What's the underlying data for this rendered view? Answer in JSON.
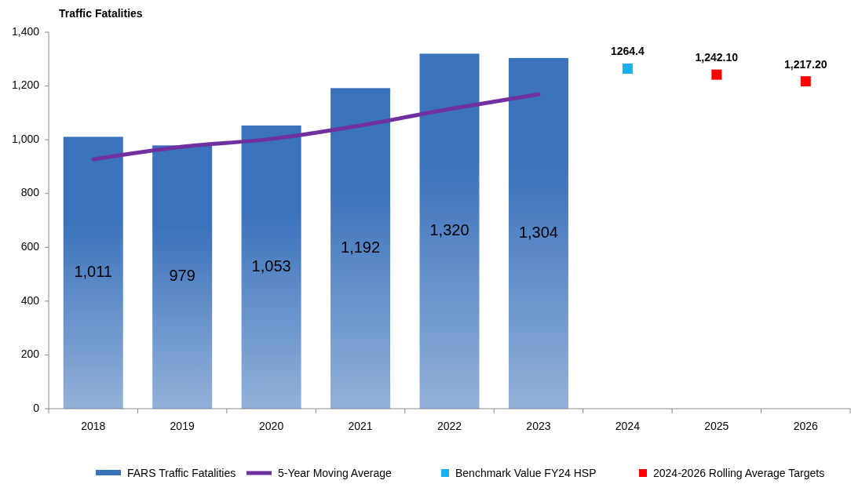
{
  "chart_data": {
    "type": "bar",
    "title": "Traffic Fatalities",
    "categories": [
      "2018",
      "2019",
      "2020",
      "2021",
      "2022",
      "2023",
      "2024",
      "2025",
      "2026"
    ],
    "series": [
      {
        "name": "FARS Traffic Fatalities",
        "color": "#3a72bb",
        "values": [
          1011,
          979,
          1053,
          1192,
          1320,
          1304,
          null,
          null,
          null
        ],
        "value_labels": [
          "1,011",
          "979",
          "1,053",
          "1,192",
          "1,320",
          "1,304",
          null,
          null,
          null
        ]
      },
      {
        "name": "5-Year Moving Average",
        "type": "line",
        "color": "#7030a0",
        "values": [
          927,
          974,
          1003,
          1053,
          1114,
          1169,
          null,
          null,
          null
        ]
      },
      {
        "name": "Benchmark Value FY24 HSP",
        "type": "scatter",
        "color": "#1ab0ef",
        "marker": "square",
        "values": [
          null,
          null,
          null,
          null,
          null,
          null,
          1264.4,
          null,
          null
        ],
        "value_labels": [
          null,
          null,
          null,
          null,
          null,
          null,
          "1264.4",
          null,
          null
        ]
      },
      {
        "name": "2024-2026 Rolling Average Targets",
        "type": "scatter",
        "color": "#ff0000",
        "marker": "square",
        "values": [
          null,
          null,
          null,
          null,
          null,
          null,
          null,
          1242.1,
          1217.2
        ],
        "value_labels": [
          null,
          null,
          null,
          null,
          null,
          null,
          null,
          "1,242.10",
          "1,217.20"
        ]
      }
    ],
    "ylim": [
      0,
      1400
    ],
    "yticks": [
      {
        "value": 0,
        "label": "0"
      },
      {
        "value": 200,
        "label": "200"
      },
      {
        "value": 400,
        "label": "400"
      },
      {
        "value": 600,
        "label": "600"
      },
      {
        "value": 800,
        "label": "800"
      },
      {
        "value": 1000,
        "label": "1,000"
      },
      {
        "value": 1200,
        "label": "1,200"
      },
      {
        "value": 1400,
        "label": "1,400"
      }
    ],
    "grid": false,
    "legend": "bottom"
  }
}
